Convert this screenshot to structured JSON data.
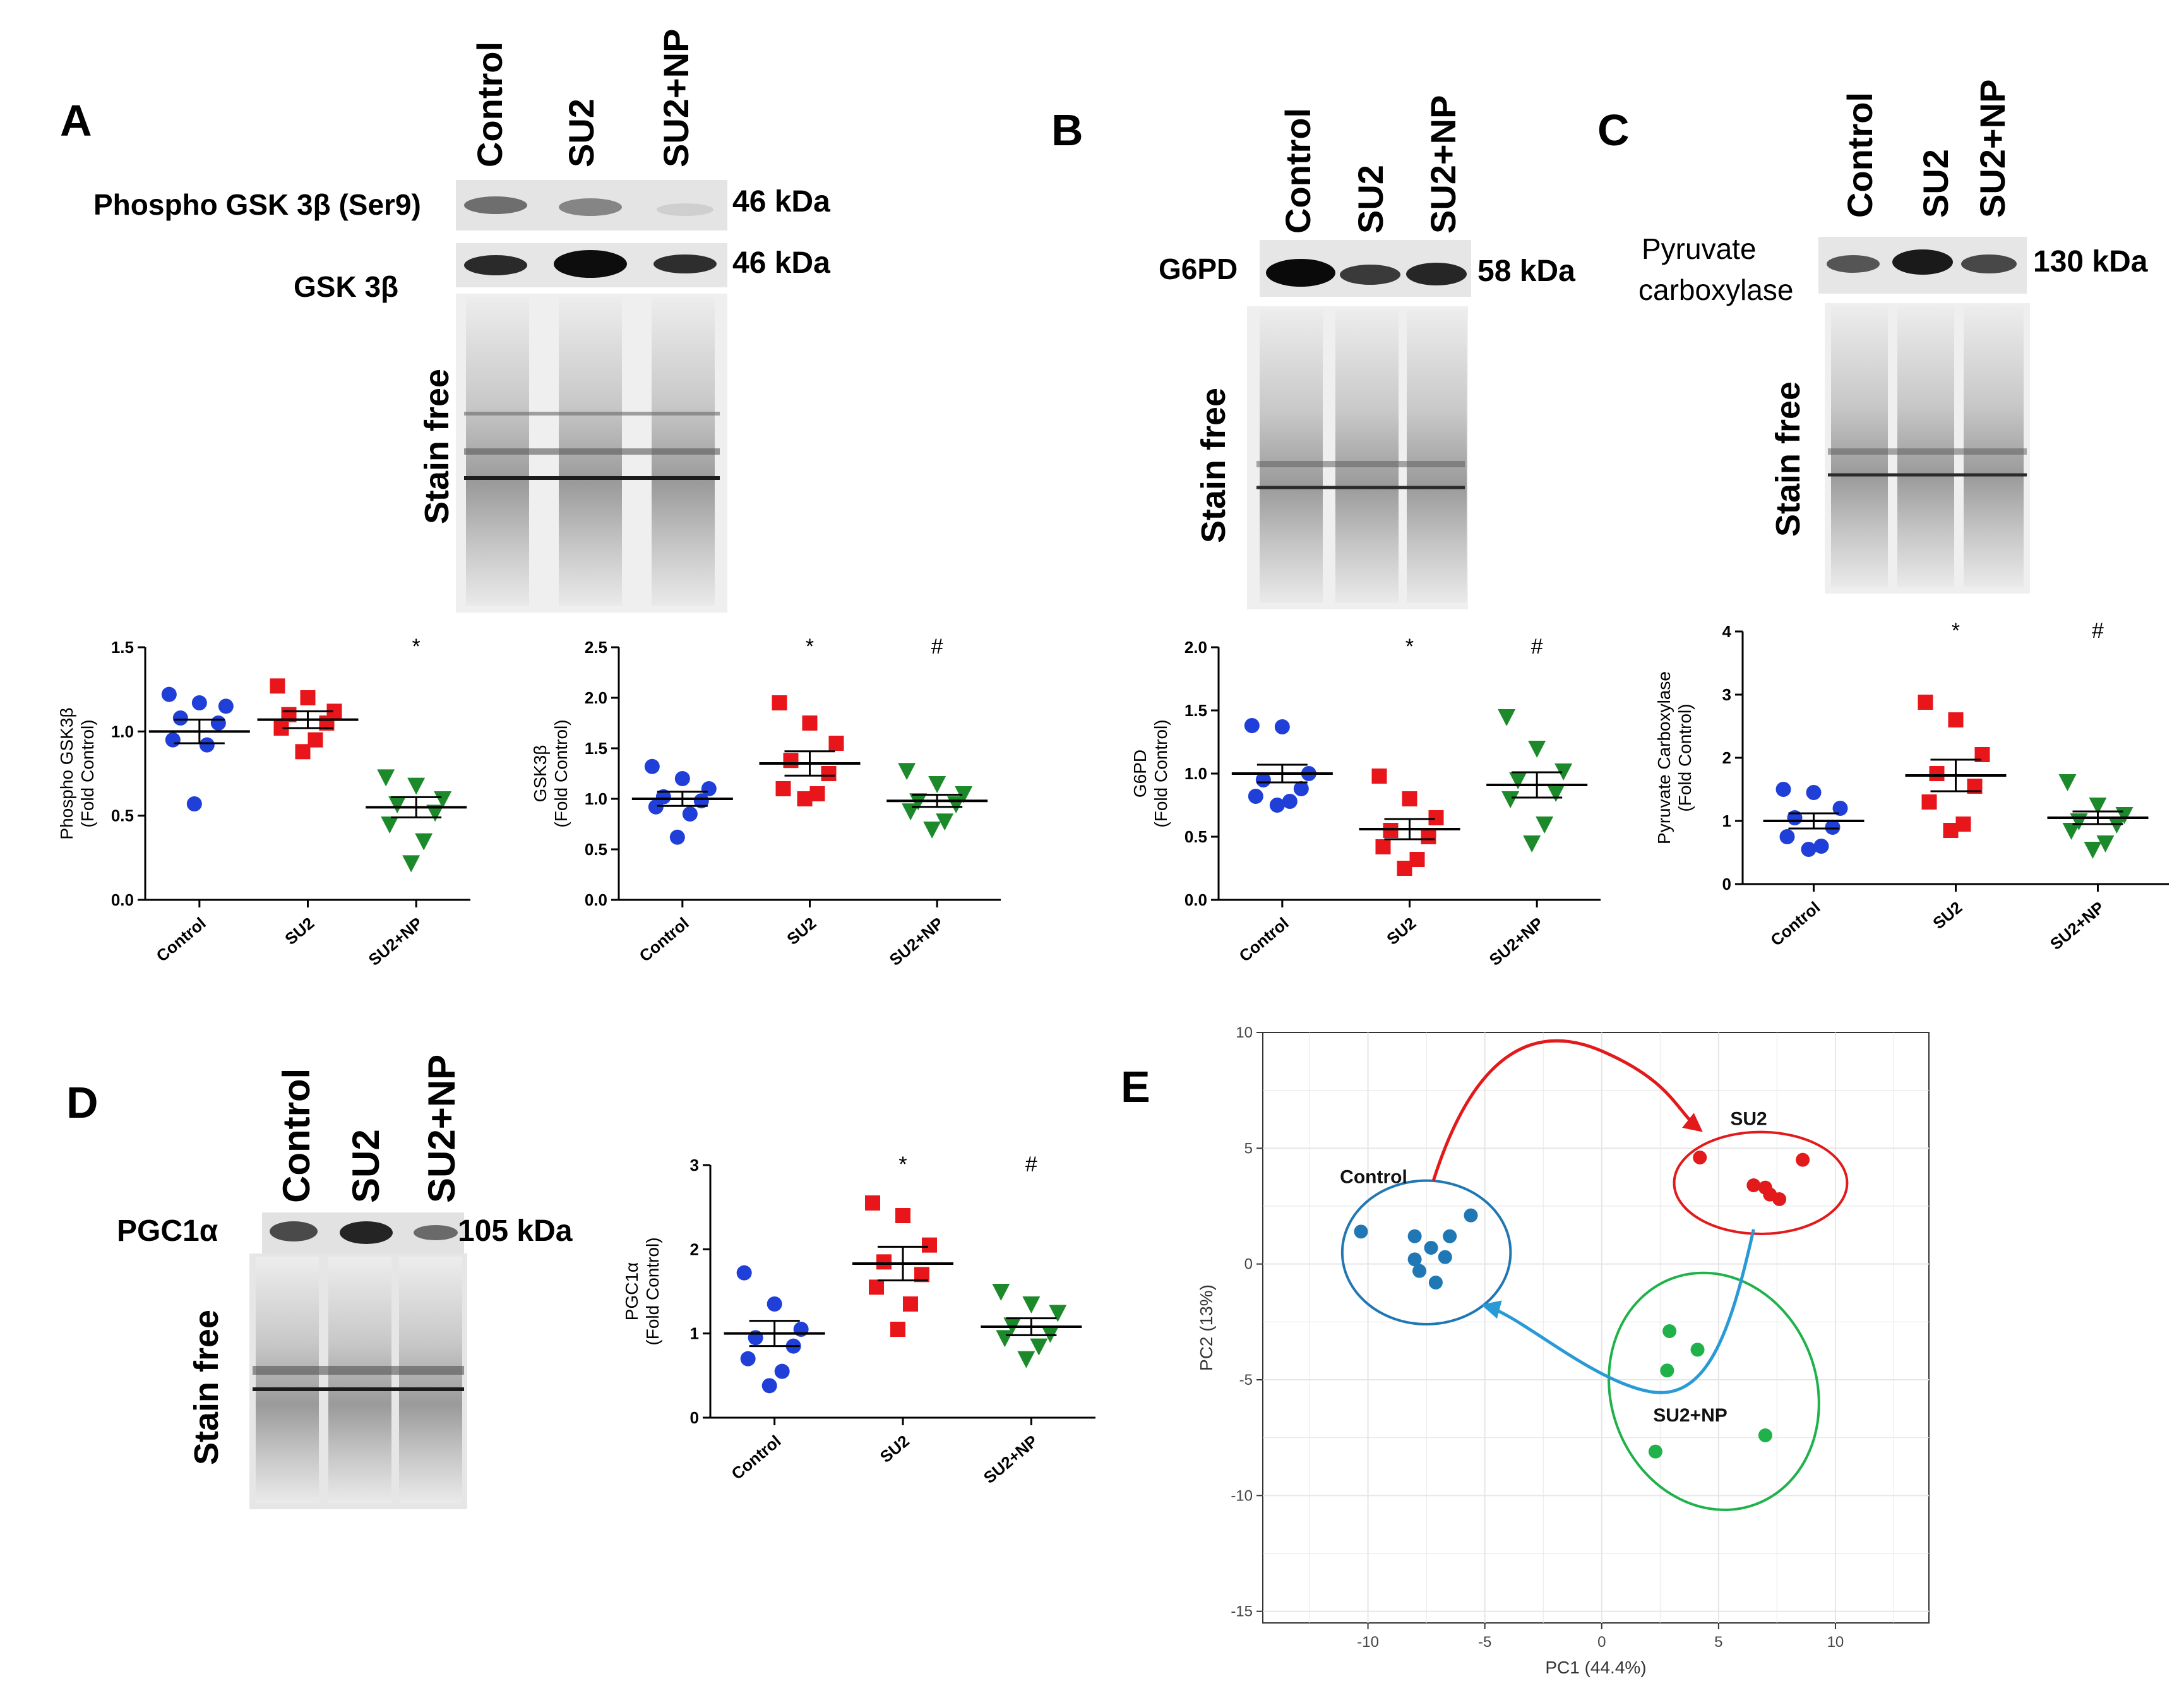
{
  "panels": {
    "A": {
      "letter": "A",
      "lanes": [
        "Control",
        "SU2",
        "SU2+NP"
      ],
      "bands": [
        {
          "label": "Phospho GSK 3β (Ser9)",
          "kda": "46 kDa"
        },
        {
          "label": "GSK 3β",
          "kda": "46 kDa"
        }
      ],
      "stain_free": "Stain free"
    },
    "B": {
      "letter": "B",
      "lanes": [
        "Control",
        "SU2",
        "SU2+NP"
      ],
      "bands": [
        {
          "label": "G6PD",
          "kda": "58 kDa"
        }
      ],
      "stain_free": "Stain free"
    },
    "C": {
      "letter": "C",
      "lanes": [
        "Control",
        "SU2",
        "SU2+NP"
      ],
      "bands": [
        {
          "label_line1": "Pyruvate",
          "label_line2": "carboxylase",
          "kda": "130 kDa"
        }
      ],
      "stain_free": "Stain free"
    },
    "D": {
      "letter": "D",
      "lanes": [
        "Control",
        "SU2",
        "SU2+NP"
      ],
      "bands": [
        {
          "label": "PGC1α",
          "kda": "105 kDa"
        }
      ],
      "stain_free": "Stain free"
    },
    "E": {
      "letter": "E"
    }
  },
  "chart_data": [
    {
      "type": "scatter",
      "id": "phospho_gsk3b",
      "ylabel_line1": "Phospho GSK3β",
      "ylabel_line2": "(Fold Control)",
      "categories": [
        "Control",
        "SU2",
        "SU2+NP"
      ],
      "ylim": [
        0,
        1.5
      ],
      "yticks": [
        "0.0",
        "0.5",
        "1.0",
        "1.5"
      ],
      "ytick_values": [
        0,
        0.5,
        1.0,
        1.5
      ],
      "series": [
        {
          "name": "Control",
          "mean": 1.0,
          "sem": 0.07,
          "values": [
            1.22,
            1.17,
            1.15,
            1.08,
            1.05,
            0.95,
            0.92,
            0.57
          ]
        },
        {
          "name": "SU2",
          "mean": 1.07,
          "sem": 0.05,
          "values": [
            1.27,
            1.2,
            1.12,
            1.1,
            1.05,
            1.02,
            0.95,
            0.88
          ]
        },
        {
          "name": "SU2+NP",
          "mean": 0.55,
          "sem": 0.06,
          "values": [
            0.73,
            0.68,
            0.6,
            0.57,
            0.52,
            0.45,
            0.35,
            0.22
          ]
        }
      ],
      "significance": [
        "",
        "",
        "*"
      ]
    },
    {
      "type": "scatter",
      "id": "gsk3b",
      "ylabel_line1": "GSK3β",
      "ylabel_line2": "(Fold Control)",
      "categories": [
        "Control",
        "SU2",
        "SU2+NP"
      ],
      "ylim": [
        0,
        2.5
      ],
      "yticks": [
        "0.0",
        "0.5",
        "1.0",
        "1.5",
        "2.0",
        "2.5"
      ],
      "ytick_values": [
        0,
        0.5,
        1.0,
        1.5,
        2.0,
        2.5
      ],
      "series": [
        {
          "name": "Control",
          "mean": 1.0,
          "sem": 0.07,
          "values": [
            1.32,
            1.2,
            1.1,
            1.02,
            0.98,
            0.92,
            0.85,
            0.62
          ]
        },
        {
          "name": "SU2",
          "mean": 1.35,
          "sem": 0.12,
          "values": [
            1.95,
            1.75,
            1.55,
            1.38,
            1.25,
            1.1,
            1.05,
            1.0
          ]
        },
        {
          "name": "SU2+NP",
          "mean": 0.98,
          "sem": 0.06,
          "values": [
            1.28,
            1.15,
            1.05,
            0.98,
            0.95,
            0.88,
            0.78,
            0.7
          ]
        }
      ],
      "significance": [
        "",
        "*",
        "#"
      ]
    },
    {
      "type": "scatter",
      "id": "g6pd",
      "ylabel_line1": "G6PD",
      "ylabel_line2": "(Fold Control)",
      "categories": [
        "Control",
        "SU2",
        "SU2+NP"
      ],
      "ylim": [
        0,
        2.0
      ],
      "yticks": [
        "0.0",
        "0.5",
        "1.0",
        "1.5",
        "2.0"
      ],
      "ytick_values": [
        0,
        0.5,
        1.0,
        1.5,
        2.0
      ],
      "series": [
        {
          "name": "Control",
          "mean": 1.0,
          "sem": 0.07,
          "values": [
            1.38,
            1.37,
            1.0,
            0.95,
            0.88,
            0.82,
            0.78,
            0.75
          ]
        },
        {
          "name": "SU2",
          "mean": 0.56,
          "sem": 0.08,
          "values": [
            0.98,
            0.8,
            0.65,
            0.55,
            0.5,
            0.42,
            0.32,
            0.25
          ]
        },
        {
          "name": "SU2+NP",
          "mean": 0.91,
          "sem": 0.1,
          "values": [
            1.45,
            1.2,
            1.02,
            0.95,
            0.85,
            0.8,
            0.6,
            0.45
          ]
        }
      ],
      "significance": [
        "",
        "*",
        "#"
      ]
    },
    {
      "type": "scatter",
      "id": "pyruvate_carboxylase",
      "ylabel_line1": "Pyruvate Carboxylase",
      "ylabel_line2": "(Fold Control)",
      "categories": [
        "Control",
        "SU2",
        "SU2+NP"
      ],
      "ylim": [
        0,
        4
      ],
      "yticks": [
        "0",
        "1",
        "2",
        "3",
        "4"
      ],
      "ytick_values": [
        0,
        1,
        2,
        3,
        4
      ],
      "series": [
        {
          "name": "Control",
          "mean": 1.0,
          "sem": 0.12,
          "values": [
            1.5,
            1.45,
            1.2,
            1.05,
            0.9,
            0.75,
            0.6,
            0.55
          ]
        },
        {
          "name": "SU2",
          "mean": 1.72,
          "sem": 0.25,
          "values": [
            2.88,
            2.6,
            2.05,
            1.75,
            1.55,
            1.3,
            0.95,
            0.85
          ]
        },
        {
          "name": "SU2+NP",
          "mean": 1.05,
          "sem": 0.1,
          "values": [
            1.62,
            1.25,
            1.1,
            1.0,
            0.95,
            0.85,
            0.65,
            0.55
          ]
        }
      ],
      "significance": [
        "",
        "*",
        "#"
      ]
    },
    {
      "type": "scatter",
      "id": "pgc1a",
      "ylabel_line1": "PGC1α",
      "ylabel_line2": "(Fold Control)",
      "categories": [
        "Control",
        "SU2",
        "SU2+NP"
      ],
      "ylim": [
        0,
        3
      ],
      "yticks": [
        "0",
        "1",
        "2",
        "3"
      ],
      "ytick_values": [
        0,
        1,
        2,
        3
      ],
      "series": [
        {
          "name": "Control",
          "mean": 1.0,
          "sem": 0.15,
          "values": [
            1.72,
            1.35,
            1.05,
            0.95,
            0.85,
            0.7,
            0.55,
            0.38
          ]
        },
        {
          "name": "SU2",
          "mean": 1.83,
          "sem": 0.2,
          "values": [
            2.55,
            2.4,
            2.05,
            1.85,
            1.7,
            1.55,
            1.35,
            1.05
          ]
        },
        {
          "name": "SU2+NP",
          "mean": 1.08,
          "sem": 0.1,
          "values": [
            1.5,
            1.35,
            1.25,
            1.1,
            1.0,
            0.95,
            0.85,
            0.7
          ]
        }
      ],
      "significance": [
        "",
        "*",
        "#"
      ]
    },
    {
      "type": "scatter",
      "id": "pca",
      "title": "",
      "xlabel": "PC1 (44.4%)",
      "ylabel": "PC2 (13%)",
      "xlim": [
        -14.5,
        14
      ],
      "ylim": [
        -15.5,
        10
      ],
      "xticks": [
        -10,
        -5,
        0,
        5,
        10
      ],
      "yticks": [
        10,
        5,
        0,
        -5,
        -10,
        -15
      ],
      "grid": true,
      "groups": [
        {
          "name": "Control",
          "color": "#1f77b4",
          "points": [
            [
              -10.3,
              1.4
            ],
            [
              -8.0,
              1.2
            ],
            [
              -6.5,
              1.2
            ],
            [
              -5.6,
              2.1
            ],
            [
              -7.3,
              0.7
            ],
            [
              -8.0,
              0.2
            ],
            [
              -6.7,
              0.3
            ],
            [
              -7.8,
              -0.3
            ],
            [
              -7.1,
              -0.8
            ]
          ]
        },
        {
          "name": "SU2",
          "color": "#e31a1c",
          "points": [
            [
              4.2,
              4.6
            ],
            [
              8.6,
              4.5
            ],
            [
              6.5,
              3.4
            ],
            [
              7.0,
              3.3
            ],
            [
              7.2,
              3.0
            ],
            [
              7.6,
              2.8
            ]
          ]
        },
        {
          "name": "SU2+NP",
          "color": "#1fb24a",
          "points": [
            [
              2.9,
              -2.9
            ],
            [
              4.1,
              -3.7
            ],
            [
              2.8,
              -4.6
            ],
            [
              7.0,
              -7.4
            ],
            [
              2.3,
              -8.1
            ]
          ]
        }
      ],
      "group_labels": [
        "Control",
        "SU2",
        "SU2+NP"
      ]
    }
  ],
  "colors": {
    "control": "#1f3fd8",
    "su2": "#e8161b",
    "su2np": "#1c8a2a",
    "pca_control": "#1f77b4",
    "pca_su2": "#e31a1c",
    "pca_su2np": "#1fb24a",
    "arrow_red": "#e31a1c",
    "arrow_blue": "#2a9ad6"
  }
}
